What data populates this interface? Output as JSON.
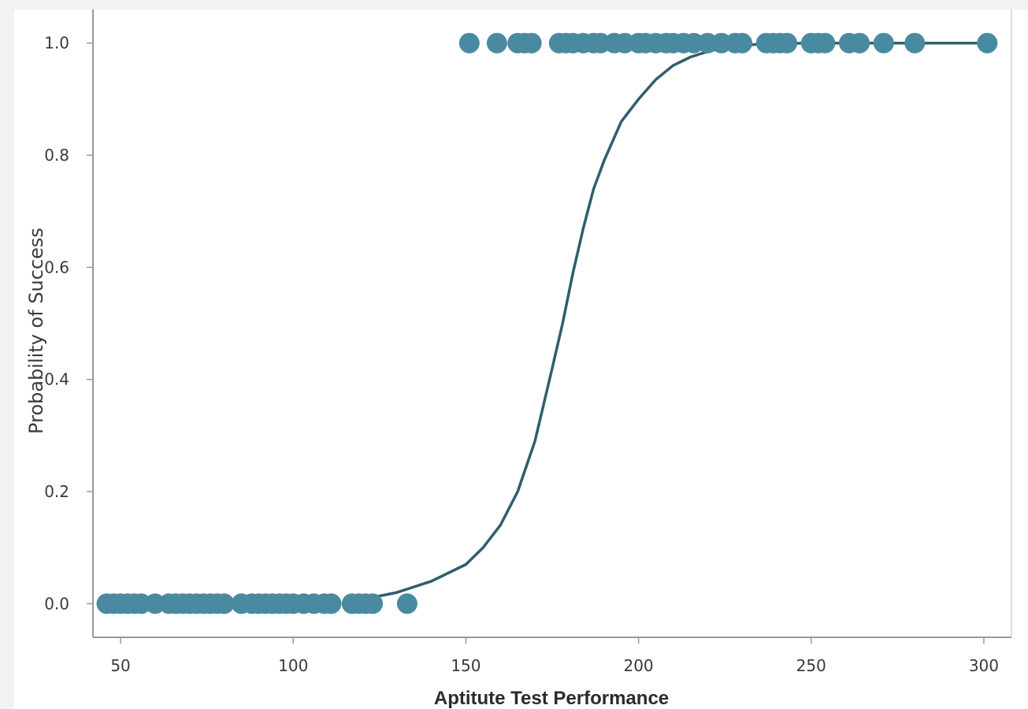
{
  "chart_data": {
    "type": "scatter",
    "xlabel": "Aptitute Test Performance",
    "ylabel": "Probability of Success",
    "xlim": [
      42,
      308
    ],
    "ylim": [
      -0.06,
      1.06
    ],
    "x_ticks": [
      50,
      100,
      150,
      200,
      250,
      300
    ],
    "x_tick_labels": [
      "50",
      "100",
      "150",
      "200",
      "250",
      "300"
    ],
    "y_ticks": [
      0.0,
      0.2,
      0.4,
      0.6,
      0.8,
      1.0
    ],
    "y_tick_labels": [
      "0.0",
      "0.2",
      "0.4",
      "0.6",
      "0.8",
      "1.0"
    ],
    "grid": false,
    "colors": {
      "points": "#4a8aa0",
      "curve": "#2f5e6e",
      "axis": "#999999"
    },
    "series": [
      {
        "type": "scatter",
        "x": [
          46,
          48,
          50,
          52,
          54,
          56,
          60,
          64,
          66,
          68,
          70,
          72,
          74,
          76,
          78,
          80,
          85,
          88,
          90,
          92,
          94,
          96,
          98,
          100,
          103,
          106,
          109,
          111,
          117,
          119,
          121,
          123,
          133,
          151,
          159,
          165,
          167,
          169,
          177,
          179,
          181,
          184,
          187,
          189,
          193,
          196,
          200,
          202,
          205,
          208,
          210,
          213,
          216,
          220,
          224,
          228,
          230,
          237,
          239,
          241,
          243,
          250,
          252,
          254,
          261,
          264,
          271,
          280,
          301
        ],
        "y": [
          0,
          0,
          0,
          0,
          0,
          0,
          0,
          0,
          0,
          0,
          0,
          0,
          0,
          0,
          0,
          0,
          0,
          0,
          0,
          0,
          0,
          0,
          0,
          0,
          0,
          0,
          0,
          0,
          0,
          0,
          0,
          0,
          0,
          1,
          1,
          1,
          1,
          1,
          1,
          1,
          1,
          1,
          1,
          1,
          1,
          1,
          1,
          1,
          1,
          1,
          1,
          1,
          1,
          1,
          1,
          1,
          1,
          1,
          1,
          1,
          1,
          1,
          1,
          1,
          1,
          1,
          1,
          1,
          1
        ]
      },
      {
        "type": "line",
        "x": [
          122,
          130,
          140,
          150,
          155,
          160,
          165,
          170,
          175,
          178,
          181,
          184,
          187,
          190,
          195,
          200,
          205,
          210,
          215,
          220,
          225,
          230,
          235,
          240,
          250,
          260,
          270,
          280,
          290,
          301
        ],
        "y": [
          0.01,
          0.02,
          0.04,
          0.07,
          0.1,
          0.14,
          0.2,
          0.29,
          0.42,
          0.5,
          0.59,
          0.67,
          0.74,
          0.79,
          0.86,
          0.9,
          0.935,
          0.96,
          0.975,
          0.985,
          0.992,
          0.996,
          0.998,
          0.999,
          1.0,
          1.0,
          1.0,
          1.0,
          1.0,
          1.0
        ]
      }
    ]
  }
}
